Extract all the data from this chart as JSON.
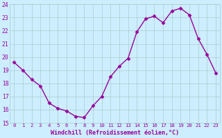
{
  "x": [
    0,
    1,
    2,
    3,
    4,
    5,
    6,
    7,
    8,
    9,
    10,
    11,
    12,
    13,
    14,
    15,
    16,
    17,
    18,
    19,
    20,
    21,
    22,
    23
  ],
  "y": [
    19.6,
    19.0,
    18.3,
    17.8,
    16.5,
    16.1,
    15.9,
    15.5,
    15.4,
    16.3,
    17.0,
    18.5,
    19.3,
    19.9,
    21.9,
    22.9,
    23.1,
    22.6,
    23.5,
    23.7,
    23.2,
    21.4,
    20.2,
    18.8
  ],
  "line_color": "#990099",
  "marker": "D",
  "marker_size": 2.5,
  "bg_color": "#cceeff",
  "grid_color": "#aacccc",
  "xlabel": "Windchill (Refroidissement éolien,°C)",
  "ylim": [
    15,
    24
  ],
  "xlim": [
    -0.5,
    23.5
  ],
  "yticks": [
    15,
    16,
    17,
    18,
    19,
    20,
    21,
    22,
    23,
    24
  ],
  "xticks": [
    0,
    1,
    2,
    3,
    4,
    5,
    6,
    7,
    8,
    9,
    10,
    11,
    12,
    13,
    14,
    15,
    16,
    17,
    18,
    19,
    20,
    21,
    22,
    23
  ],
  "xlabel_color": "#990099",
  "tick_color": "#990099",
  "linewidth": 1.0,
  "figsize": [
    3.2,
    2.0
  ],
  "dpi": 100
}
